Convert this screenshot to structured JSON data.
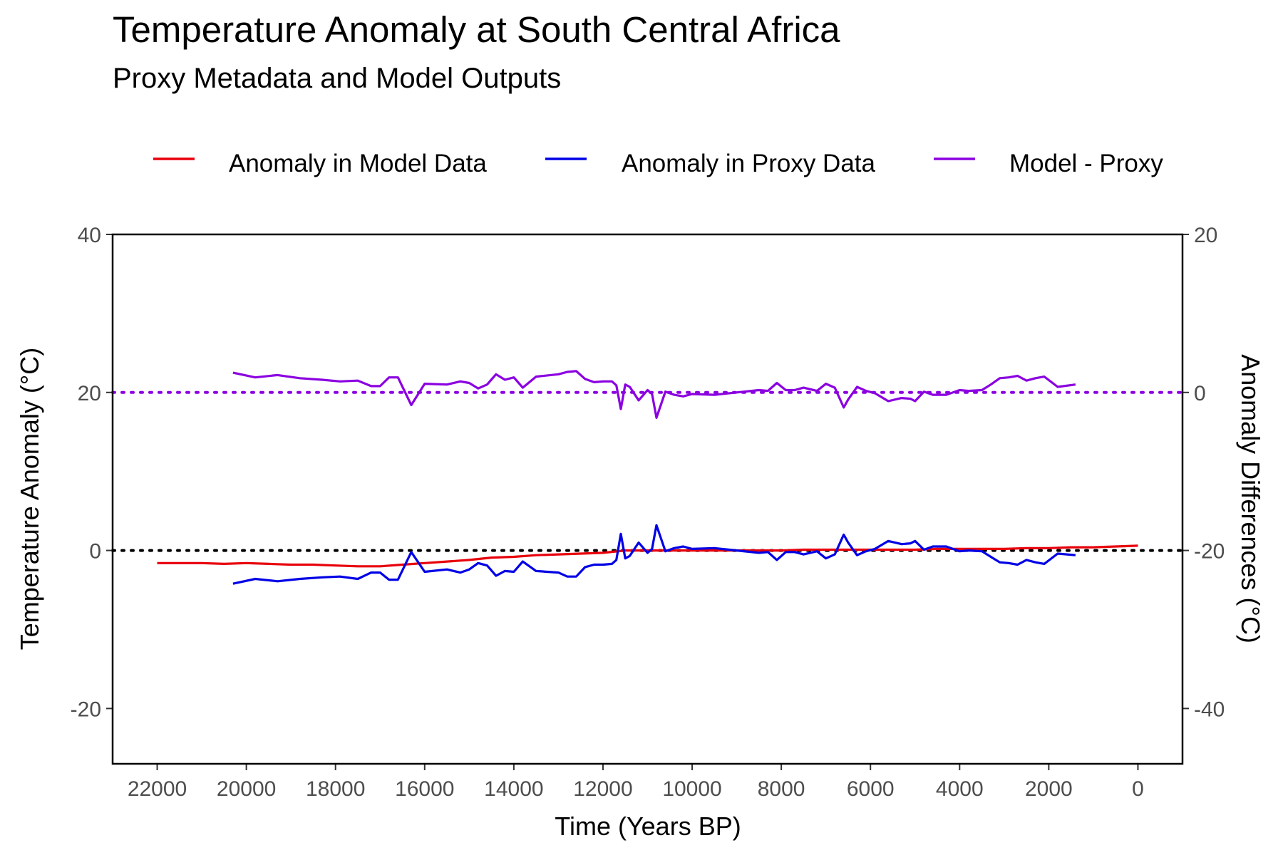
{
  "chart_data": {
    "type": "line",
    "title": "Temperature Anomaly at South Central Africa",
    "subtitle": "Proxy Metadata and Model Outputs",
    "xlabel": "Time (Years BP)",
    "ylabel": "Temperature Anomaly (°C)",
    "y2label": "Anomaly Differences  (°C)",
    "x_reversed": true,
    "xlim": [
      23000,
      -1000
    ],
    "ylim": [
      -27,
      40
    ],
    "y2lim": [
      -47,
      20
    ],
    "x_ticks": [
      22000,
      20000,
      18000,
      16000,
      14000,
      12000,
      10000,
      8000,
      6000,
      4000,
      2000,
      0
    ],
    "x_tick_labels": [
      "22000",
      "20000",
      "18000",
      "16000",
      "14000",
      "12000",
      "10000",
      "8000",
      "6000",
      "4000",
      "2000",
      "0"
    ],
    "y_ticks": [
      40,
      20,
      0,
      -20
    ],
    "y_tick_labels": [
      "40",
      "20",
      "0",
      "-20"
    ],
    "y2_ticks": [
      20,
      0,
      -20,
      -40
    ],
    "y2_tick_labels": [
      "20",
      "0",
      "-20",
      "-40"
    ],
    "grid": false,
    "legend_position": "top",
    "reference_lines": [
      {
        "y": 0,
        "axis": "left",
        "color": "#000000",
        "style": "dotted"
      },
      {
        "y": 0,
        "axis": "right",
        "color": "#8B00E0",
        "style": "dotted"
      }
    ],
    "series": [
      {
        "name": "Anomaly in Model Data",
        "color": "#E8000B",
        "axis": "left",
        "x": [
          22000,
          21500,
          21000,
          20500,
          20000,
          19500,
          19000,
          18500,
          18000,
          17500,
          17000,
          16500,
          16000,
          15500,
          15000,
          14500,
          14000,
          13500,
          13000,
          12500,
          12000,
          11500,
          11000,
          10500,
          10000,
          9500,
          9000,
          8500,
          8000,
          7500,
          7000,
          6500,
          6000,
          5500,
          5000,
          4500,
          4000,
          3500,
          3000,
          2500,
          2000,
          1500,
          1000,
          500,
          0
        ],
        "y": [
          -1.6,
          -1.6,
          -1.6,
          -1.7,
          -1.6,
          -1.7,
          -1.8,
          -1.8,
          -1.9,
          -2.0,
          -2.0,
          -1.8,
          -1.6,
          -1.4,
          -1.2,
          -0.9,
          -0.8,
          -0.6,
          -0.5,
          -0.4,
          -0.3,
          0.0,
          0.0,
          0.0,
          0.0,
          0.0,
          0.0,
          0.0,
          0.0,
          0.1,
          0.1,
          0.1,
          0.1,
          0.1,
          0.1,
          0.2,
          0.2,
          0.2,
          0.2,
          0.3,
          0.3,
          0.4,
          0.4,
          0.5,
          0.6
        ]
      },
      {
        "name": "Anomaly in Proxy Data",
        "color": "#0000E6",
        "axis": "left",
        "x": [
          20300,
          19800,
          19300,
          18800,
          18300,
          17900,
          17500,
          17200,
          17000,
          16800,
          16600,
          16300,
          16000,
          15500,
          15200,
          15000,
          14800,
          14600,
          14400,
          14200,
          14000,
          13800,
          13500,
          13000,
          12800,
          12600,
          12400,
          12200,
          12000,
          11800,
          11700,
          11600,
          11500,
          11400,
          11200,
          11000,
          10900,
          10800,
          10600,
          10400,
          10200,
          10000,
          9500,
          9000,
          8500,
          8300,
          8100,
          7900,
          7700,
          7500,
          7200,
          7000,
          6800,
          6600,
          6500,
          6300,
          6100,
          5900,
          5600,
          5300,
          5100,
          5000,
          4800,
          4600,
          4300,
          4000,
          3800,
          3500,
          3300,
          3100,
          2900,
          2700,
          2500,
          2300,
          2100,
          1800,
          1400
        ],
        "y": [
          -4.2,
          -3.6,
          -3.9,
          -3.6,
          -3.4,
          -3.3,
          -3.6,
          -2.8,
          -2.8,
          -3.7,
          -3.7,
          -0.2,
          -2.7,
          -2.4,
          -2.8,
          -2.4,
          -1.6,
          -1.9,
          -3.2,
          -2.6,
          -2.7,
          -1.4,
          -2.6,
          -2.8,
          -3.3,
          -3.3,
          -2.1,
          -1.8,
          -1.8,
          -1.7,
          -1.2,
          2.1,
          -1.0,
          -0.7,
          1.0,
          -0.3,
          0.2,
          3.2,
          -0.1,
          0.3,
          0.5,
          0.2,
          0.3,
          0.0,
          -0.3,
          -0.2,
          -1.2,
          -0.2,
          -0.2,
          -0.5,
          -0.1,
          -1.0,
          -0.5,
          2.0,
          1.0,
          -0.6,
          -0.1,
          0.2,
          1.2,
          0.8,
          0.9,
          1.2,
          0.1,
          0.5,
          0.5,
          -0.1,
          0.0,
          -0.1,
          -0.8,
          -1.5,
          -1.6,
          -1.8,
          -1.2,
          -1.5,
          -1.7,
          -0.4,
          -0.6
        ]
      },
      {
        "name": "Model - Proxy",
        "color": "#8B00E0",
        "axis": "right",
        "x": [
          20300,
          19800,
          19300,
          18800,
          18300,
          17900,
          17500,
          17200,
          17000,
          16800,
          16600,
          16300,
          16000,
          15500,
          15200,
          15000,
          14800,
          14600,
          14400,
          14200,
          14000,
          13800,
          13500,
          13000,
          12800,
          12600,
          12400,
          12200,
          12000,
          11800,
          11700,
          11600,
          11500,
          11400,
          11200,
          11000,
          10900,
          10800,
          10600,
          10400,
          10200,
          10000,
          9500,
          9000,
          8500,
          8300,
          8100,
          7900,
          7700,
          7500,
          7200,
          7000,
          6800,
          6600,
          6500,
          6300,
          6100,
          5900,
          5600,
          5300,
          5100,
          5000,
          4800,
          4600,
          4300,
          4000,
          3800,
          3500,
          3300,
          3100,
          2900,
          2700,
          2500,
          2300,
          2100,
          1800,
          1400
        ],
        "y": [
          2.5,
          1.9,
          2.2,
          1.8,
          1.6,
          1.4,
          1.5,
          0.8,
          0.8,
          1.9,
          1.9,
          -1.6,
          1.1,
          1.0,
          1.4,
          1.2,
          0.5,
          1.0,
          2.3,
          1.6,
          1.9,
          0.6,
          2.0,
          2.3,
          2.6,
          2.7,
          1.7,
          1.3,
          1.4,
          1.4,
          0.9,
          -2.1,
          1.0,
          0.7,
          -1.0,
          0.3,
          -0.2,
          -3.2,
          0.1,
          -0.3,
          -0.5,
          -0.2,
          -0.3,
          0.0,
          0.3,
          0.2,
          1.2,
          0.3,
          0.3,
          0.6,
          0.2,
          1.1,
          0.6,
          -1.9,
          -0.9,
          0.7,
          0.2,
          -0.1,
          -1.1,
          -0.7,
          -0.8,
          -1.1,
          0.1,
          -0.3,
          -0.3,
          0.3,
          0.2,
          0.3,
          1.0,
          1.8,
          1.9,
          2.1,
          1.5,
          1.8,
          2.0,
          0.7,
          1.0
        ]
      }
    ]
  }
}
